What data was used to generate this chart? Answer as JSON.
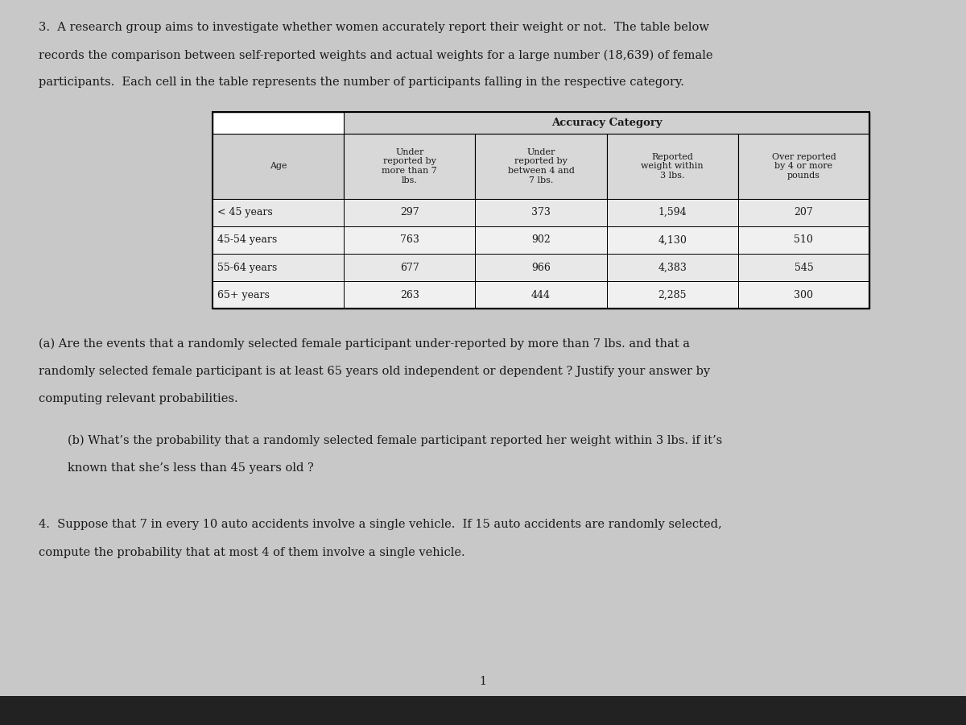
{
  "bg_color": "#c8c8c8",
  "text_color": "#1a1a1a",
  "question3_intro": "3.  A research group aims to investigate whether women accurately report their weight or not.  The table below\nrecords the comparison between self-reported weights and actual weights for a large number (18,639) of female\nparticipants.  Each cell in the table represents the number of participants falling in the respective category.",
  "table_title": "Accuracy Category",
  "col_headers": [
    "Age",
    "Under\nreported by\nmore than 7\nlbs.",
    "Under\nreported by\nbetween 4 and\n7 lbs.",
    "Reported\nweight within\n3 lbs.",
    "Over reported\nby 4 or more\npounds"
  ],
  "row_labels": [
    "< 45 years",
    "45-54 years",
    "55-64 years",
    "65+ years"
  ],
  "table_data": [
    [
      297,
      373,
      1594,
      207
    ],
    [
      763,
      902,
      4130,
      510
    ],
    [
      677,
      966,
      4383,
      545
    ],
    [
      263,
      444,
      2285,
      300
    ]
  ],
  "part_a": "(a) Are the events that a randomly selected female participant under-reported by more than 7 lbs. and that a\nrandomly selected female participant is at least 65 years old independent or dependent ? Justify your answer by\ncomputing relevant probabilities.",
  "part_b": "(b) What’s the probability that a randomly selected female participant reported her weight within 3 lbs. if it’s\nknown that she’s less than 45 years old ?",
  "question4": "4.  Suppose that 7 in every 10 auto accidents involve a single vehicle.  If 15 auto accidents are randomly selected,\ncompute the probability that at most 4 of them involve a single vehicle.",
  "page_number": "1"
}
